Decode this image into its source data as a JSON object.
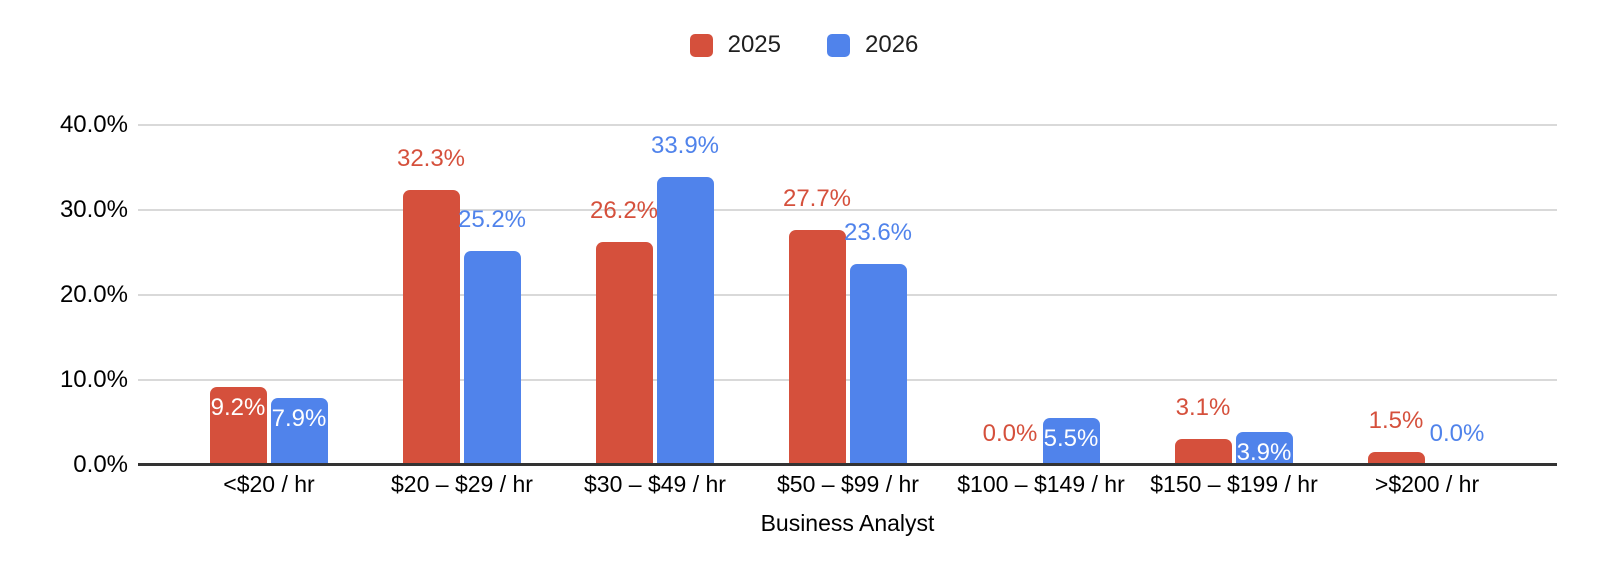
{
  "chart_data": {
    "type": "bar",
    "title": "",
    "xlabel": "Business Analyst",
    "ylabel": "",
    "ylim": [
      0,
      40
    ],
    "grid": true,
    "legend_position": "top",
    "ytick_values": [
      0,
      10,
      20,
      30,
      40
    ],
    "ytick_labels": [
      "0.0%",
      "10.0%",
      "20.0%",
      "30.0%",
      "40.0%"
    ],
    "categories": [
      "<$20 / hr",
      "$20 – $29 / hr",
      "$30 – $49 / hr",
      "$50 – $99 / hr",
      "$100 – $149 / hr",
      "$150 – $199 / hr",
      ">$200 / hr"
    ],
    "series": [
      {
        "name": "2025",
        "color": "#d5503c",
        "values": [
          9.2,
          32.3,
          26.2,
          27.7,
          0,
          3.1,
          1.5
        ],
        "labels": [
          "9.2%",
          "32.3%",
          "26.2%",
          "27.7%",
          "0.0%",
          "3.1%",
          "1.5%"
        ],
        "label_positions": [
          "inside",
          "above",
          "above",
          "above",
          "above",
          "above",
          "above"
        ]
      },
      {
        "name": "2026",
        "color": "#5083eb",
        "values": [
          7.9,
          25.2,
          33.9,
          23.6,
          5.5,
          3.9,
          0
        ],
        "labels": [
          "7.9%",
          "25.2%",
          "33.9%",
          "23.6%",
          "5.5%",
          "3.9%",
          "0.0%"
        ],
        "label_positions": [
          "inside",
          "above",
          "above",
          "above",
          "inside",
          "inside",
          "above"
        ]
      }
    ]
  },
  "colors": {
    "background": "#ffffff",
    "gridline": "#d9d9d9",
    "axis_line": "#333333",
    "text": "#000000",
    "inside_label_text": "#ffffff"
  }
}
